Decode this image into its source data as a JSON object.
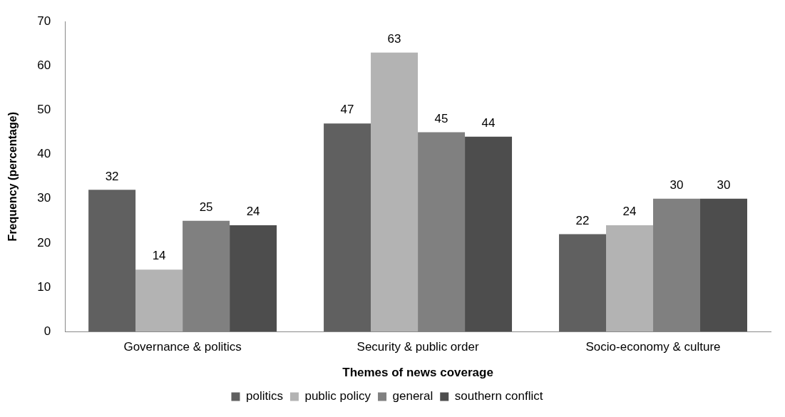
{
  "chart_data": {
    "type": "bar",
    "xlabel": "Themes of news coverage",
    "ylabel": "Frequency (percentage)",
    "categories": [
      "Governance & politics",
      "Security & public order",
      "Socio-economy & culture"
    ],
    "series": [
      {
        "name": "politics",
        "color": "#606060",
        "values": [
          32,
          47,
          22
        ]
      },
      {
        "name": "public policy",
        "color": "#b3b3b3",
        "values": [
          14,
          63,
          24
        ]
      },
      {
        "name": "general",
        "color": "#808080",
        "values": [
          25,
          45,
          30
        ]
      },
      {
        "name": "southern conflict",
        "color": "#4d4d4d",
        "values": [
          24,
          44,
          30
        ]
      }
    ],
    "ylim": [
      0,
      70
    ],
    "yticks": [
      0,
      10,
      20,
      30,
      40,
      50,
      60,
      70
    ],
    "grid": false,
    "legend": "bottom",
    "data_labels": true
  }
}
